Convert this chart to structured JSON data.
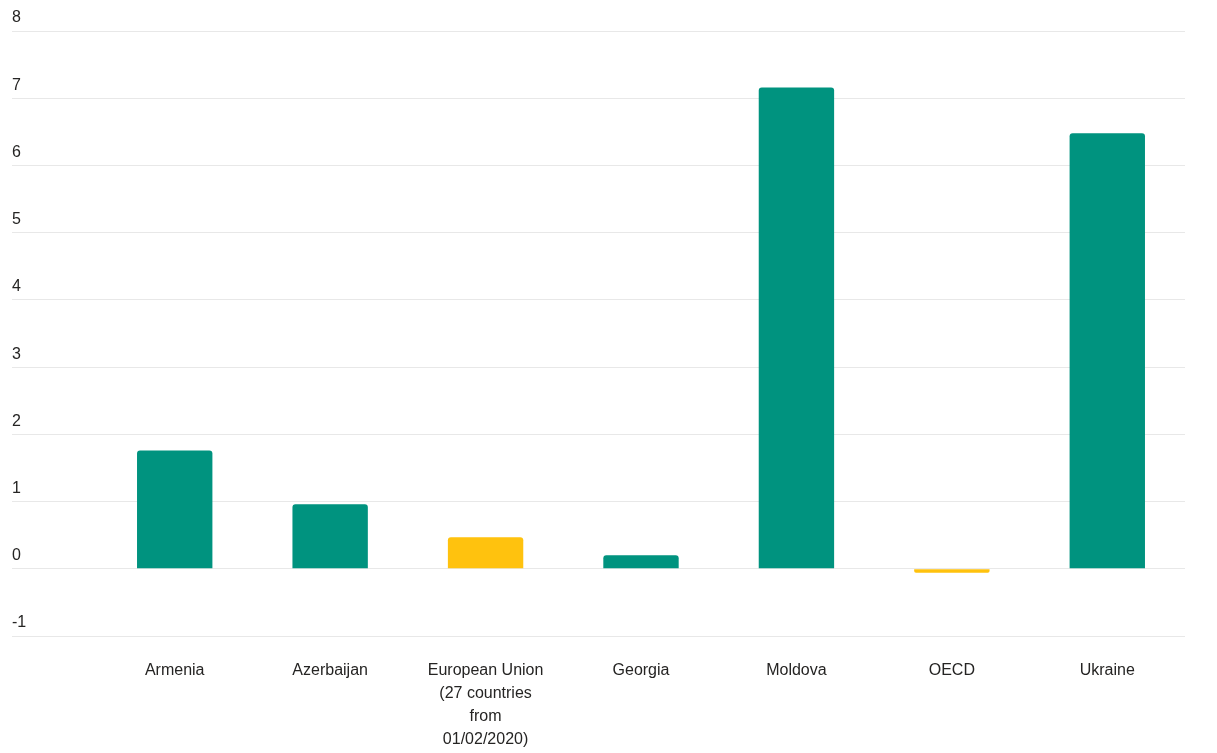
{
  "chart_data": {
    "type": "bar",
    "categories": [
      "Armenia",
      "Azerbaijan",
      "European Union (27 countries from 01/02/2020)",
      "Georgia",
      "Moldova",
      "OECD",
      "Ukraine"
    ],
    "values": [
      1.76,
      0.96,
      0.47,
      0.2,
      7.16,
      -0.06,
      6.48
    ],
    "colors": [
      "#00937f",
      "#00937f",
      "#ffc20e",
      "#00937f",
      "#00937f",
      "#ffc20e",
      "#00937f"
    ],
    "ylim": [
      -1,
      8
    ],
    "yticks": [
      -1,
      0,
      1,
      2,
      3,
      4,
      5,
      6,
      7,
      8
    ],
    "grid": "y"
  }
}
